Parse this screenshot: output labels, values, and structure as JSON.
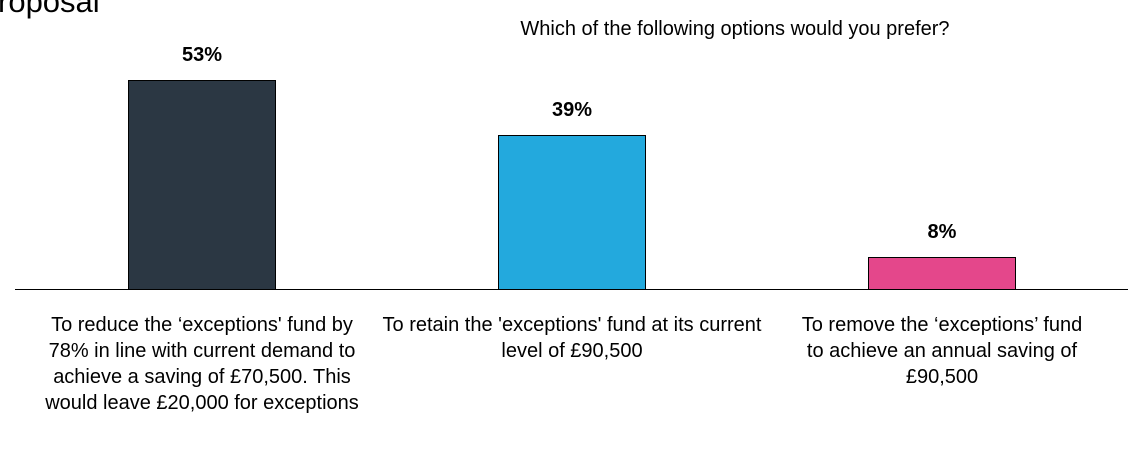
{
  "heading": "roposal",
  "chart_data": {
    "type": "bar",
    "title": "Which of the following options would you prefer?",
    "categories": [
      "To reduce the ‘exceptions' fund by 78% in line with current demand to achieve a saving of £70,500. This would leave £20,000 for exceptions",
      "To retain the 'exceptions' fund at its current level of £90,500",
      "To remove the ‘exceptions’ fund to achieve an annual saving of £90,500"
    ],
    "values": [
      53,
      39,
      8
    ],
    "value_labels": [
      "53%",
      "39%",
      "8%"
    ],
    "colors": [
      "#2b3743",
      "#23a9dd",
      "#e4478b"
    ]
  }
}
